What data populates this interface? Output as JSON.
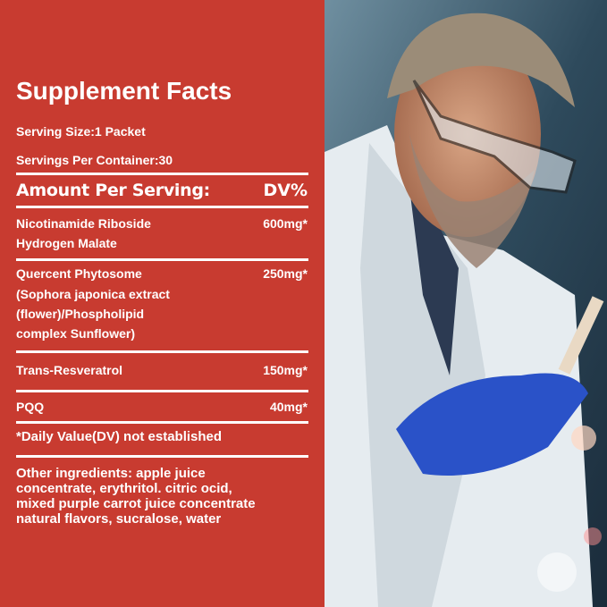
{
  "title": "Supplement Facts",
  "serving_size": "Serving Size:1 Packet",
  "servings_per_container": "Servings Per Container:30",
  "header": {
    "amount": "Amount Per Serving:",
    "dv": "DV%"
  },
  "ingredients": [
    {
      "name_lines": [
        "Nicotinamide Riboside",
        "Hydrogen Malate"
      ],
      "amount": "600mg*"
    },
    {
      "name_lines": [
        "Quercent Phytosome",
        "(Sophora japonica extract",
        "(flower)/Phospholipid",
        "complex Sunflower)"
      ],
      "amount": "250mg*"
    },
    {
      "name_lines": [
        "Trans-Resveratrol"
      ],
      "amount": "150mg*"
    },
    {
      "name_lines": [
        "PQQ"
      ],
      "amount": "40mg*"
    }
  ],
  "footnote": "*Daily Value(DV) not established",
  "other_lines": [
    "Other ingredients: apple juice",
    "concentrate, erythritol. citric ocid,",
    "mixed purple carrot juice concentrate",
    "natural flavors, sucralose, water"
  ],
  "colors": {
    "panel": "#c83b30",
    "text": "#ffffff"
  }
}
